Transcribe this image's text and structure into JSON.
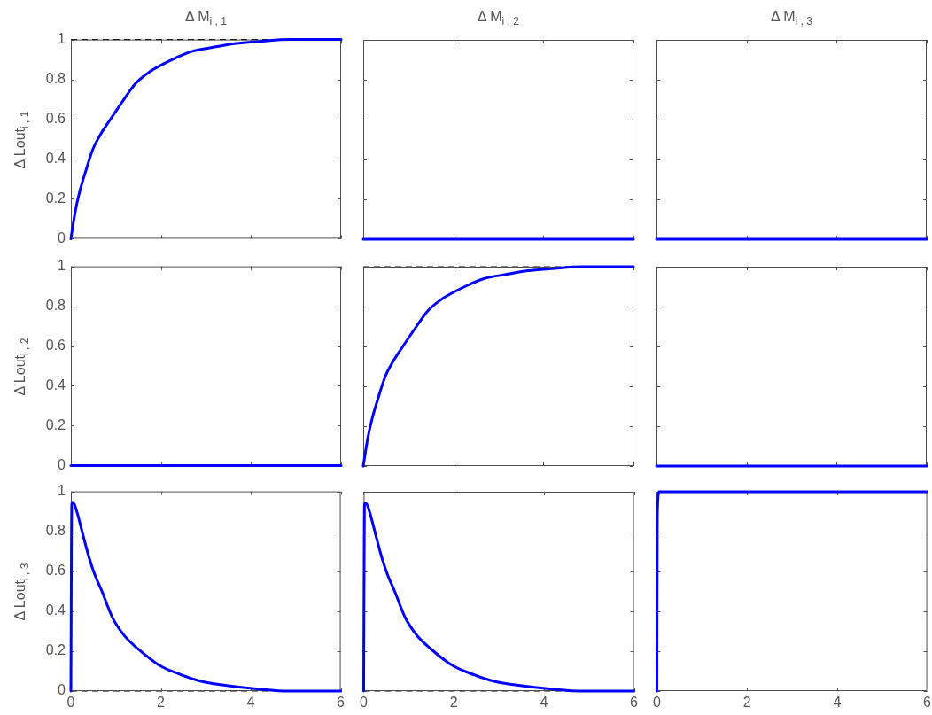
{
  "chart_data": [
    {
      "type": "line",
      "title": "Δ M$_{i , 1}$",
      "ylabel": "Δ Lout$_{i , 1}$",
      "series": [
        {
          "color": "#0000ff",
          "x": [
            0,
            0.1,
            0.2,
            0.33,
            0.49,
            0.65,
            0.88,
            1.18,
            1.44,
            1.76,
            1.99,
            2.35,
            2.68,
            3.14,
            3.66,
            4.18,
            4.87,
            6
          ],
          "values": [
            0,
            0.14,
            0.24,
            0.34,
            0.45,
            0.52,
            0.6,
            0.7,
            0.78,
            0.84,
            0.87,
            0.91,
            0.94,
            0.96,
            0.98,
            0.99,
            1,
            1
          ]
        }
      ],
      "ref_lines": [
        {
          "axis": "y",
          "value": 1,
          "color": "#000000",
          "line_style": "dashed"
        }
      ],
      "xlim": [
        0,
        6
      ],
      "xticks": [
        0,
        2,
        4,
        6
      ],
      "ylim": [
        0,
        1
      ],
      "yticks": [
        0,
        0.2,
        0.4,
        0.6,
        0.8,
        1
      ],
      "tick_labels": "y"
    },
    {
      "type": "line",
      "title": "Δ M$_{i , 2}$",
      "series": [
        {
          "color": "#0000ff",
          "x": [
            0,
            6
          ],
          "values": [
            0,
            0
          ]
        }
      ],
      "xlim": [
        0,
        6
      ],
      "xticks": [
        0,
        2,
        4,
        6
      ],
      "ylim": [
        0,
        1
      ],
      "yticks": [
        0,
        0.2,
        0.4,
        0.6,
        0.8,
        1
      ],
      "tick_labels": false
    },
    {
      "type": "line",
      "title": "Δ M$_{i , 3}$",
      "series": [
        {
          "color": "#0000ff",
          "x": [
            0,
            6
          ],
          "values": [
            0,
            0
          ]
        }
      ],
      "xlim": [
        0,
        6
      ],
      "xticks": [
        0,
        2,
        4,
        6
      ],
      "ylim": [
        0,
        1
      ],
      "yticks": [
        0,
        0.2,
        0.4,
        0.6,
        0.8,
        1
      ],
      "tick_labels": false
    },
    {
      "type": "line",
      "ylabel": "Δ Lout$_{i , 2}$",
      "series": [
        {
          "color": "#0000ff",
          "x": [
            0,
            6
          ],
          "values": [
            0,
            0
          ]
        }
      ],
      "xlim": [
        0,
        6
      ],
      "xticks": [
        0,
        2,
        4,
        6
      ],
      "ylim": [
        0,
        1
      ],
      "yticks": [
        0,
        0.2,
        0.4,
        0.6,
        0.8,
        1
      ],
      "tick_labels": "y"
    },
    {
      "type": "line",
      "series": [
        {
          "color": "#0000ff",
          "x": [
            0,
            0.1,
            0.2,
            0.33,
            0.49,
            0.65,
            0.88,
            1.18,
            1.44,
            1.76,
            1.99,
            2.35,
            2.68,
            3.14,
            3.66,
            4.18,
            4.87,
            6
          ],
          "values": [
            0,
            0.14,
            0.24,
            0.34,
            0.45,
            0.52,
            0.6,
            0.7,
            0.78,
            0.84,
            0.87,
            0.91,
            0.94,
            0.96,
            0.98,
            0.99,
            1,
            1
          ]
        }
      ],
      "ref_lines": [
        {
          "axis": "y",
          "value": 1,
          "color": "#000000",
          "line_style": "dashed"
        }
      ],
      "xlim": [
        0,
        6
      ],
      "xticks": [
        0,
        2,
        4,
        6
      ],
      "ylim": [
        0,
        1
      ],
      "yticks": [
        0,
        0.2,
        0.4,
        0.6,
        0.8,
        1
      ],
      "tick_labels": false
    },
    {
      "type": "line",
      "series": [
        {
          "color": "#0000ff",
          "x": [
            0,
            6
          ],
          "values": [
            0,
            0
          ]
        }
      ],
      "xlim": [
        0,
        6
      ],
      "xticks": [
        0,
        2,
        4,
        6
      ],
      "ylim": [
        0,
        1
      ],
      "yticks": [
        0,
        0.2,
        0.4,
        0.6,
        0.8,
        1
      ],
      "tick_labels": false
    },
    {
      "type": "line",
      "ylabel": "Δ Lout$_{i , 3}$",
      "series": [
        {
          "color": "#0000ff",
          "x": [
            0,
            0.02,
            0.06,
            0.13,
            0.26,
            0.39,
            0.52,
            0.69,
            0.92,
            1.18,
            1.5,
            1.96,
            2.35,
            2.88,
            3.4,
            4.18,
            4.87,
            6
          ],
          "values": [
            0,
            0.94,
            0.94,
            0.9,
            0.79,
            0.68,
            0.59,
            0.5,
            0.37,
            0.28,
            0.21,
            0.13,
            0.09,
            0.05,
            0.03,
            0.01,
            0,
            0
          ]
        }
      ],
      "ref_lines": [
        {
          "axis": "y",
          "value": 0,
          "color": "#000000",
          "line_style": "dashed"
        }
      ],
      "xlim": [
        0,
        6
      ],
      "xticks": [
        0,
        2,
        4,
        6
      ],
      "ylim": [
        0,
        1
      ],
      "yticks": [
        0,
        0.2,
        0.4,
        0.6,
        0.8,
        1
      ]
    },
    {
      "type": "line",
      "series": [
        {
          "color": "#0000ff",
          "x": [
            0,
            0.02,
            0.06,
            0.13,
            0.26,
            0.39,
            0.52,
            0.69,
            0.92,
            1.18,
            1.5,
            1.96,
            2.35,
            2.88,
            3.4,
            4.18,
            4.87,
            6
          ],
          "values": [
            0,
            0.94,
            0.94,
            0.9,
            0.79,
            0.68,
            0.59,
            0.5,
            0.37,
            0.28,
            0.21,
            0.13,
            0.09,
            0.05,
            0.03,
            0.01,
            0,
            0
          ]
        }
      ],
      "ref_lines": [
        {
          "axis": "y",
          "value": 0,
          "color": "#000000",
          "line_style": "dashed"
        }
      ],
      "xlim": [
        0,
        6
      ],
      "xticks": [
        0,
        2,
        4,
        6
      ],
      "ylim": [
        0,
        1
      ],
      "yticks": [
        0,
        0.2,
        0.4,
        0.6,
        0.8,
        1
      ],
      "tick_labels": "x"
    },
    {
      "type": "line",
      "series": [
        {
          "color": "#0000ff",
          "x": [
            0,
            0.01,
            0.05,
            6
          ],
          "values": [
            0,
            0.88,
            1,
            1
          ]
        }
      ],
      "xlim": [
        0,
        6
      ],
      "xticks": [
        0,
        2,
        4,
        6
      ],
      "ylim": [
        0,
        1
      ],
      "yticks": [
        0,
        0.2,
        0.4,
        0.6,
        0.8,
        1
      ],
      "tick_labels": "x"
    }
  ]
}
